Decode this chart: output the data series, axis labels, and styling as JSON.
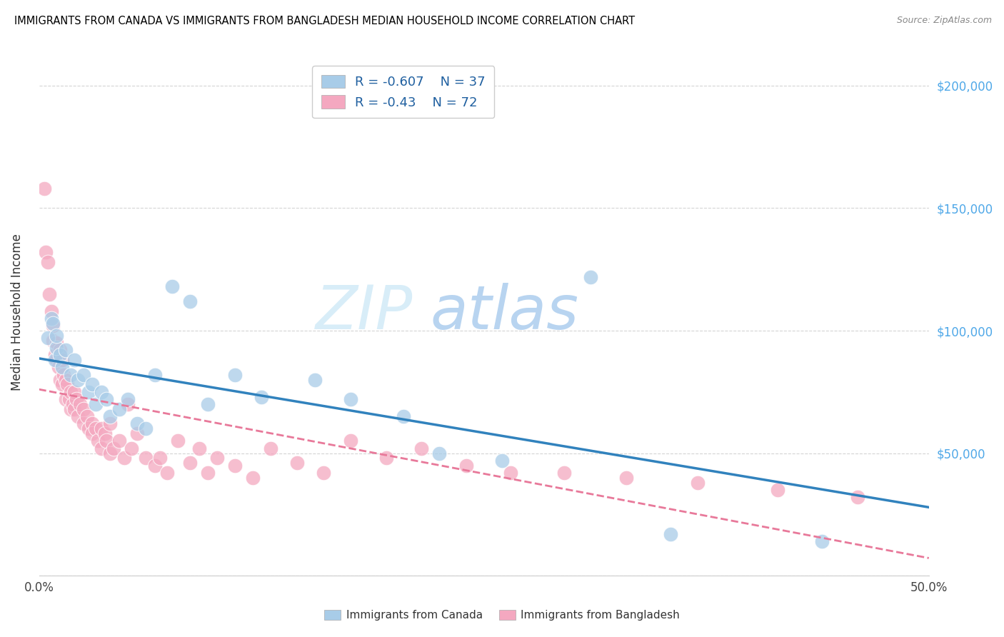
{
  "title": "IMMIGRANTS FROM CANADA VS IMMIGRANTS FROM BANGLADESH MEDIAN HOUSEHOLD INCOME CORRELATION CHART",
  "source": "Source: ZipAtlas.com",
  "ylabel": "Median Household Income",
  "canada_R": -0.607,
  "canada_N": 37,
  "bangladesh_R": -0.43,
  "bangladesh_N": 72,
  "canada_color": "#a8cce8",
  "bangladesh_color": "#f4a8c0",
  "canada_line_color": "#3182bd",
  "bangladesh_line_color": "#e8799a",
  "watermark_zip_color": "#d0e8f8",
  "watermark_atlas_color": "#c0d8f0",
  "canada_x": [
    0.005,
    0.007,
    0.008,
    0.009,
    0.01,
    0.01,
    0.012,
    0.013,
    0.015,
    0.018,
    0.02,
    0.022,
    0.025,
    0.028,
    0.03,
    0.032,
    0.035,
    0.038,
    0.04,
    0.045,
    0.05,
    0.055,
    0.06,
    0.065,
    0.075,
    0.085,
    0.095,
    0.11,
    0.125,
    0.155,
    0.175,
    0.205,
    0.225,
    0.26,
    0.31,
    0.355,
    0.44
  ],
  "canada_y": [
    97000,
    105000,
    103000,
    88000,
    93000,
    98000,
    90000,
    85000,
    92000,
    82000,
    88000,
    80000,
    82000,
    75000,
    78000,
    70000,
    75000,
    72000,
    65000,
    68000,
    72000,
    62000,
    60000,
    82000,
    118000,
    112000,
    70000,
    82000,
    73000,
    80000,
    72000,
    65000,
    50000,
    47000,
    122000,
    17000,
    14000
  ],
  "bangladesh_x": [
    0.003,
    0.004,
    0.005,
    0.006,
    0.007,
    0.008,
    0.008,
    0.009,
    0.01,
    0.01,
    0.011,
    0.012,
    0.012,
    0.013,
    0.013,
    0.014,
    0.015,
    0.015,
    0.016,
    0.017,
    0.018,
    0.018,
    0.019,
    0.02,
    0.02,
    0.021,
    0.022,
    0.023,
    0.025,
    0.025,
    0.027,
    0.028,
    0.03,
    0.03,
    0.032,
    0.033,
    0.035,
    0.035,
    0.037,
    0.038,
    0.04,
    0.04,
    0.042,
    0.045,
    0.048,
    0.05,
    0.052,
    0.055,
    0.06,
    0.065,
    0.068,
    0.072,
    0.078,
    0.085,
    0.09,
    0.095,
    0.1,
    0.11,
    0.12,
    0.13,
    0.145,
    0.16,
    0.175,
    0.195,
    0.215,
    0.24,
    0.265,
    0.295,
    0.33,
    0.37,
    0.415,
    0.46
  ],
  "bangladesh_y": [
    158000,
    132000,
    128000,
    115000,
    108000,
    102000,
    96000,
    90000,
    88000,
    95000,
    85000,
    92000,
    80000,
    88000,
    78000,
    82000,
    80000,
    72000,
    78000,
    72000,
    68000,
    75000,
    70000,
    75000,
    68000,
    72000,
    65000,
    70000,
    68000,
    62000,
    65000,
    60000,
    62000,
    58000,
    60000,
    55000,
    60000,
    52000,
    58000,
    55000,
    62000,
    50000,
    52000,
    55000,
    48000,
    70000,
    52000,
    58000,
    48000,
    45000,
    48000,
    42000,
    55000,
    46000,
    52000,
    42000,
    48000,
    45000,
    40000,
    52000,
    46000,
    42000,
    55000,
    48000,
    52000,
    45000,
    42000,
    42000,
    40000,
    38000,
    35000,
    32000
  ],
  "xlim": [
    0.0,
    0.5
  ],
  "ylim": [
    0,
    215000
  ],
  "yticks": [
    0,
    50000,
    100000,
    150000,
    200000
  ],
  "xtick_positions": [
    0.0,
    0.1,
    0.2,
    0.3,
    0.4,
    0.5
  ]
}
